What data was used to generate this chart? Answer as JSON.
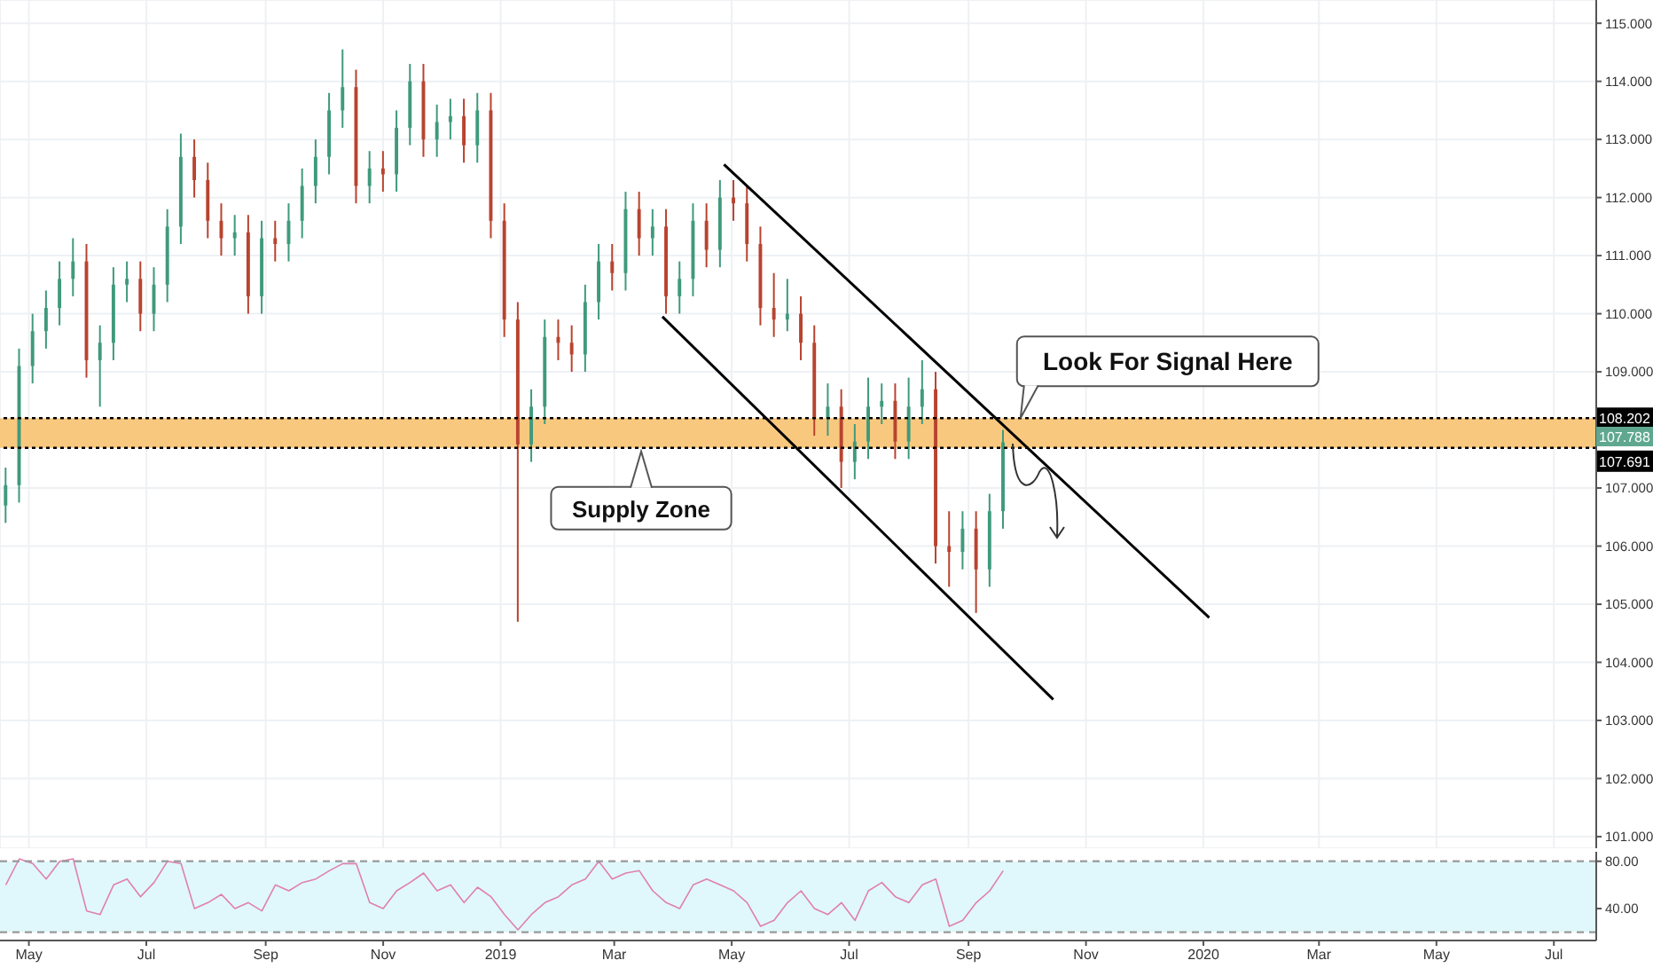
{
  "chart_data": [
    {
      "type": "candlestick",
      "x": [
        "2018-04-19",
        "2018-04-26",
        "2018-05-03",
        "2018-05-10",
        "2018-05-17",
        "2018-05-24",
        "2018-05-31",
        "2018-06-07",
        "2018-06-14",
        "2018-06-21",
        "2018-06-28",
        "2018-07-05",
        "2018-07-12",
        "2018-07-19",
        "2018-07-26",
        "2018-08-02",
        "2018-08-09",
        "2018-08-16",
        "2018-08-23",
        "2018-08-30",
        "2018-09-06",
        "2018-09-13",
        "2018-09-20",
        "2018-09-27",
        "2018-10-04",
        "2018-10-11",
        "2018-10-18",
        "2018-10-25",
        "2018-11-01",
        "2018-11-08",
        "2018-11-15",
        "2018-11-22",
        "2018-11-29",
        "2018-12-06",
        "2018-12-13",
        "2018-12-20",
        "2018-12-27",
        "2019-01-03",
        "2019-01-10",
        "2019-01-17",
        "2019-01-24",
        "2019-01-31",
        "2019-02-07",
        "2019-02-14",
        "2019-02-21",
        "2019-02-28",
        "2019-03-07",
        "2019-03-14",
        "2019-03-21",
        "2019-03-28",
        "2019-04-04",
        "2019-04-11",
        "2019-04-18",
        "2019-04-25",
        "2019-05-02",
        "2019-05-09",
        "2019-05-16",
        "2019-05-23",
        "2019-05-30",
        "2019-06-06",
        "2019-06-13",
        "2019-06-20",
        "2019-06-27",
        "2019-07-04",
        "2019-07-11",
        "2019-07-18",
        "2019-07-25",
        "2019-08-01",
        "2019-08-08",
        "2019-08-15",
        "2019-08-22",
        "2019-08-29",
        "2019-09-05",
        "2019-09-12",
        "2019-09-19"
      ],
      "ohlc": [
        [
          106.7,
          107.35,
          106.4,
          107.05
        ],
        [
          107.05,
          109.4,
          106.75,
          109.1
        ],
        [
          109.1,
          110.0,
          108.8,
          109.7
        ],
        [
          109.7,
          110.4,
          109.4,
          110.1
        ],
        [
          110.1,
          110.9,
          109.8,
          110.6
        ],
        [
          110.6,
          111.3,
          110.3,
          110.9
        ],
        [
          110.9,
          111.2,
          108.9,
          109.2
        ],
        [
          109.2,
          109.8,
          108.4,
          109.5
        ],
        [
          109.5,
          110.8,
          109.2,
          110.5
        ],
        [
          110.5,
          110.9,
          110.2,
          110.6
        ],
        [
          110.6,
          110.9,
          109.7,
          110.0
        ],
        [
          110.0,
          110.8,
          109.7,
          110.5
        ],
        [
          110.5,
          111.8,
          110.2,
          111.5
        ],
        [
          111.5,
          113.1,
          111.2,
          112.7
        ],
        [
          112.7,
          113.0,
          112.0,
          112.3
        ],
        [
          112.3,
          112.6,
          111.3,
          111.6
        ],
        [
          111.6,
          111.9,
          111.0,
          111.3
        ],
        [
          111.3,
          111.7,
          111.0,
          111.4
        ],
        [
          111.4,
          111.7,
          110.0,
          110.3
        ],
        [
          110.3,
          111.6,
          110.0,
          111.3
        ],
        [
          111.3,
          111.6,
          110.9,
          111.2
        ],
        [
          111.2,
          111.9,
          110.9,
          111.6
        ],
        [
          111.6,
          112.5,
          111.3,
          112.2
        ],
        [
          112.2,
          113.0,
          111.9,
          112.7
        ],
        [
          112.7,
          113.8,
          112.4,
          113.5
        ],
        [
          113.5,
          114.55,
          113.2,
          113.9
        ],
        [
          113.9,
          114.2,
          111.9,
          112.2
        ],
        [
          112.2,
          112.8,
          111.9,
          112.5
        ],
        [
          112.5,
          112.8,
          112.1,
          112.4
        ],
        [
          112.4,
          113.5,
          112.1,
          113.2
        ],
        [
          113.2,
          114.3,
          112.9,
          114.0
        ],
        [
          114.0,
          114.3,
          112.7,
          113.0
        ],
        [
          113.0,
          113.6,
          112.7,
          113.3
        ],
        [
          113.3,
          113.7,
          113.0,
          113.4
        ],
        [
          113.4,
          113.7,
          112.6,
          112.9
        ],
        [
          112.9,
          113.8,
          112.6,
          113.5
        ],
        [
          113.5,
          113.8,
          111.3,
          111.6
        ],
        [
          111.6,
          111.9,
          109.6,
          109.9
        ],
        [
          109.9,
          110.2,
          104.7,
          107.75
        ],
        [
          107.75,
          108.7,
          107.45,
          108.4
        ],
        [
          108.4,
          109.9,
          108.1,
          109.6
        ],
        [
          109.6,
          109.9,
          109.2,
          109.5
        ],
        [
          109.5,
          109.8,
          109.0,
          109.3
        ],
        [
          109.3,
          110.5,
          109.0,
          110.2
        ],
        [
          110.2,
          111.2,
          109.9,
          110.9
        ],
        [
          110.9,
          111.2,
          110.4,
          110.7
        ],
        [
          110.7,
          112.1,
          110.4,
          111.8
        ],
        [
          111.8,
          112.1,
          111.0,
          111.3
        ],
        [
          111.3,
          111.8,
          111.0,
          111.5
        ],
        [
          111.5,
          111.8,
          110.0,
          110.3
        ],
        [
          110.3,
          110.9,
          110.0,
          110.6
        ],
        [
          110.6,
          111.9,
          110.3,
          111.6
        ],
        [
          111.6,
          111.9,
          110.8,
          111.1
        ],
        [
          111.1,
          112.3,
          110.8,
          112.0
        ],
        [
          112.0,
          112.3,
          111.6,
          111.9
        ],
        [
          111.9,
          112.2,
          110.9,
          111.2
        ],
        [
          111.2,
          111.5,
          109.8,
          110.1
        ],
        [
          110.1,
          110.7,
          109.6,
          109.9
        ],
        [
          109.9,
          110.6,
          109.7,
          110.0
        ],
        [
          110.0,
          110.3,
          109.2,
          109.5
        ],
        [
          109.5,
          109.8,
          107.9,
          108.2
        ],
        [
          108.2,
          108.8,
          107.9,
          108.4
        ],
        [
          108.4,
          108.7,
          107.0,
          107.45
        ],
        [
          107.45,
          108.1,
          107.15,
          107.8
        ],
        [
          107.8,
          108.9,
          107.5,
          108.4
        ],
        [
          108.4,
          108.8,
          108.1,
          108.5
        ],
        [
          108.5,
          108.8,
          107.5,
          107.8
        ],
        [
          107.8,
          108.9,
          107.5,
          108.4
        ],
        [
          108.4,
          109.2,
          108.1,
          108.7
        ],
        [
          108.7,
          109.0,
          105.7,
          106.0
        ],
        [
          106.0,
          106.6,
          105.3,
          105.9
        ],
        [
          105.9,
          106.6,
          105.6,
          106.3
        ],
        [
          106.3,
          106.6,
          104.85,
          105.6
        ],
        [
          105.6,
          106.9,
          105.3,
          106.6
        ],
        [
          106.6,
          108.0,
          106.3,
          107.788
        ]
      ],
      "colors": [
        "#3f9a7c",
        "#3f9a7c",
        "#3f9a7c",
        "#3f9a7c",
        "#3f9a7c",
        "#3f9a7c",
        "#b8432f",
        "#3f9a7c",
        "#3f9a7c",
        "#3f9a7c",
        "#b8432f",
        "#3f9a7c",
        "#3f9a7c",
        "#3f9a7c",
        "#b8432f",
        "#b8432f",
        "#b8432f",
        "#3f9a7c",
        "#b8432f",
        "#3f9a7c",
        "#b8432f",
        "#3f9a7c",
        "#3f9a7c",
        "#3f9a7c",
        "#3f9a7c",
        "#3f9a7c",
        "#b8432f",
        "#3f9a7c",
        "#b8432f",
        "#3f9a7c",
        "#3f9a7c",
        "#b8432f",
        "#3f9a7c",
        "#3f9a7c",
        "#b8432f",
        "#3f9a7c",
        "#b8432f",
        "#b8432f",
        "#b8432f",
        "#3f9a7c",
        "#3f9a7c",
        "#b8432f",
        "#b8432f",
        "#3f9a7c",
        "#3f9a7c",
        "#b8432f",
        "#3f9a7c",
        "#b8432f",
        "#3f9a7c",
        "#b8432f",
        "#3f9a7c",
        "#3f9a7c",
        "#b8432f",
        "#3f9a7c",
        "#b8432f",
        "#b8432f",
        "#b8432f",
        "#b8432f",
        "#3f9a7c",
        "#b8432f",
        "#b8432f",
        "#3f9a7c",
        "#b8432f",
        "#3f9a7c",
        "#3f9a7c",
        "#3f9a7c",
        "#b8432f",
        "#3f9a7c",
        "#3f9a7c",
        "#b8432f",
        "#b8432f",
        "#3f9a7c",
        "#b8432f",
        "#3f9a7c",
        "#3f9a7c"
      ],
      "series": [
        {
          "type": "line",
          "color": "#000000",
          "x": [
            "2019-04-27",
            "2020-01-04"
          ],
          "values": [
            112.57,
            104.77
          ]
        },
        {
          "type": "line",
          "color": "#000000",
          "x": [
            "2019-03-26",
            "2019-10-15"
          ],
          "values": [
            109.95,
            103.36
          ]
        }
      ],
      "xlim": [
        "2018-04-16",
        "2020-07-23"
      ],
      "xticks": [
        {
          "value": "2018-05-01",
          "label": null
        },
        {
          "value": "2018-07-01",
          "label": null
        },
        {
          "value": "2018-09-01",
          "label": null
        },
        {
          "value": "2018-11-01",
          "label": null
        },
        {
          "value": "2019-01-01",
          "label": null
        },
        {
          "value": "2019-03-01",
          "label": null
        },
        {
          "value": "2019-05-01",
          "label": null
        },
        {
          "value": "2019-07-01",
          "label": null
        },
        {
          "value": "2019-09-01",
          "label": null
        },
        {
          "value": "2019-11-01",
          "label": null
        },
        {
          "value": "2020-01-01",
          "label": null
        },
        {
          "value": "2020-03-01",
          "label": null
        },
        {
          "value": "2020-05-01",
          "label": null
        },
        {
          "value": "2020-07-01",
          "label": null
        }
      ],
      "ylim": [
        100.8,
        115.4
      ],
      "yticks": [
        {
          "value": 101,
          "label": "101.000"
        },
        {
          "value": 102,
          "label": "102.000"
        },
        {
          "value": 103,
          "label": "103.000"
        },
        {
          "value": 104,
          "label": "104.000"
        },
        {
          "value": 105,
          "label": "105.000"
        },
        {
          "value": 106,
          "label": "106.000"
        },
        {
          "value": 107,
          "label": "107.000"
        },
        {
          "value": 109,
          "label": "109.000"
        },
        {
          "value": 110,
          "label": "110.000"
        },
        {
          "value": 111,
          "label": "111.000"
        },
        {
          "value": 112,
          "label": "112.000"
        },
        {
          "value": 113,
          "label": "113.000"
        },
        {
          "value": 114,
          "label": "114.000"
        },
        {
          "value": 115,
          "label": "115.000"
        }
      ],
      "bands": [
        {
          "axis": "y",
          "from": 107.691,
          "to": 108.202,
          "color": "#f9c87f"
        }
      ],
      "ref_lines": [
        {
          "axis": "y",
          "value": 108.202,
          "label": "108.202",
          "color": "#000000",
          "line_style": "dotted"
        },
        {
          "axis": "y",
          "value": 107.691,
          "label": "107.691",
          "color": "#000000",
          "line_style": "dotted"
        }
      ],
      "annotations": [
        "107.788",
        {
          "text": "Supply Zone",
          "x": "2019-03-15",
          "y": 107.691
        },
        {
          "text": "Look For Signal Here",
          "x": "2019-09-28",
          "y": 108.202
        }
      ],
      "grid": true,
      "tick_labels": "y"
    },
    {
      "type": "line",
      "x": [
        "2018-04-19",
        "2018-04-26",
        "2018-05-03",
        "2018-05-10",
        "2018-05-17",
        "2018-05-24",
        "2018-05-31",
        "2018-06-07",
        "2018-06-14",
        "2018-06-21",
        "2018-06-28",
        "2018-07-05",
        "2018-07-12",
        "2018-07-19",
        "2018-07-26",
        "2018-08-02",
        "2018-08-09",
        "2018-08-16",
        "2018-08-23",
        "2018-08-30",
        "2018-09-06",
        "2018-09-13",
        "2018-09-20",
        "2018-09-27",
        "2018-10-04",
        "2018-10-11",
        "2018-10-18",
        "2018-10-25",
        "2018-11-01",
        "2018-11-08",
        "2018-11-15",
        "2018-11-22",
        "2018-11-29",
        "2018-12-06",
        "2018-12-13",
        "2018-12-20",
        "2018-12-27",
        "2019-01-03",
        "2019-01-10",
        "2019-01-17",
        "2019-01-24",
        "2019-01-31",
        "2019-02-07",
        "2019-02-14",
        "2019-02-21",
        "2019-02-28",
        "2019-03-07",
        "2019-03-14",
        "2019-03-21",
        "2019-03-28",
        "2019-04-04",
        "2019-04-11",
        "2019-04-18",
        "2019-04-25",
        "2019-05-02",
        "2019-05-09",
        "2019-05-16",
        "2019-05-23",
        "2019-05-30",
        "2019-06-06",
        "2019-06-13",
        "2019-06-20",
        "2019-06-27",
        "2019-07-04",
        "2019-07-11",
        "2019-07-18",
        "2019-07-25",
        "2019-08-01",
        "2019-08-08",
        "2019-08-15",
        "2019-08-22",
        "2019-08-29",
        "2019-09-05",
        "2019-09-12",
        "2019-09-19"
      ],
      "series": [
        {
          "color": "#e07fb0",
          "values": [
            60,
            82,
            78,
            65,
            80,
            82,
            38,
            35,
            60,
            65,
            50,
            62,
            80,
            78,
            40,
            45,
            52,
            40,
            45,
            38,
            60,
            55,
            62,
            65,
            72,
            78,
            78,
            45,
            40,
            55,
            62,
            70,
            55,
            60,
            45,
            58,
            50,
            35,
            22,
            35,
            45,
            50,
            60,
            65,
            80,
            65,
            70,
            72,
            55,
            45,
            40,
            60,
            65,
            60,
            55,
            45,
            25,
            30,
            45,
            55,
            40,
            35,
            45,
            30,
            55,
            62,
            50,
            45,
            60,
            65,
            25,
            30,
            45,
            55,
            72
          ]
        }
      ],
      "xlim": [
        "2018-04-16",
        "2020-07-23"
      ],
      "xticks": [
        {
          "value": "2018-05-01",
          "label": "May"
        },
        {
          "value": "2018-07-01",
          "label": "Jul"
        },
        {
          "value": "2018-09-01",
          "label": "Sep"
        },
        {
          "value": "2018-11-01",
          "label": "Nov"
        },
        {
          "value": "2019-01-01",
          "label": "2019"
        },
        {
          "value": "2019-03-01",
          "label": "Mar"
        },
        {
          "value": "2019-05-01",
          "label": "May"
        },
        {
          "value": "2019-07-01",
          "label": "Jul"
        },
        {
          "value": "2019-09-01",
          "label": "Sep"
        },
        {
          "value": "2019-11-01",
          "label": "Nov"
        },
        {
          "value": "2020-01-01",
          "label": "2020"
        },
        {
          "value": "2020-03-01",
          "label": "Mar"
        },
        {
          "value": "2020-05-01",
          "label": "May"
        },
        {
          "value": "2020-07-01",
          "label": "Jul"
        }
      ],
      "ylim": [
        13,
        88
      ],
      "yticks": [
        {
          "value": 80,
          "label": "80.00"
        },
        {
          "value": 40,
          "label": "40.00"
        }
      ],
      "bands": [
        {
          "axis": "y",
          "from": 20,
          "to": 80,
          "color": "#e0f8fb"
        }
      ],
      "ref_lines": [
        {
          "axis": "y",
          "value": 80,
          "color": "#999999",
          "line_style": "dashed"
        },
        {
          "axis": "y",
          "value": 20,
          "color": "#999999",
          "line_style": "dashed"
        }
      ]
    }
  ]
}
